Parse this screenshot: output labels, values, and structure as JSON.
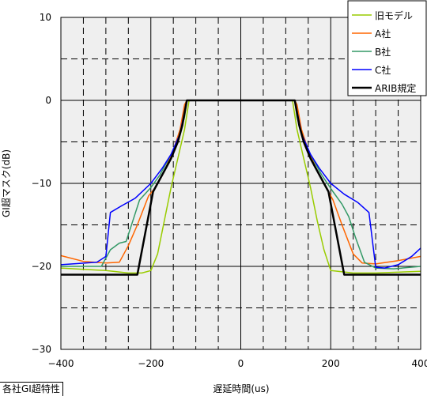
{
  "caption": "各社GI超特性",
  "chart_data": {
    "type": "line",
    "xlabel": "遅延時間(us)",
    "ylabel": "GI超マスク(dB)",
    "xlim": [
      -400,
      400
    ],
    "ylim": [
      -30,
      10
    ],
    "xticks": [
      -400,
      -200,
      0,
      200,
      400
    ],
    "yticks": [
      10,
      0,
      -10,
      -20,
      -30
    ],
    "x_tick_labels": [
      "−400",
      "−200",
      "0",
      "200",
      "400"
    ],
    "y_tick_labels": [
      "10",
      "0",
      "−10",
      "−20",
      "−30"
    ],
    "grid": "solid major every 200 us / 10 dB, dashed minor every 50 us / 5 dB, grey plot background",
    "legend_position": "top-right",
    "series": [
      {
        "name": "旧モデル",
        "color": "#99cc00",
        "width": 1.5,
        "points": [
          [
            -400,
            -20.2
          ],
          [
            -300,
            -20.5
          ],
          [
            -250,
            -20.8
          ],
          [
            -220,
            -20.8
          ],
          [
            -200,
            -20.5
          ],
          [
            -185,
            -18.5
          ],
          [
            -170,
            -14.5
          ],
          [
            -155,
            -10.5
          ],
          [
            -140,
            -7
          ],
          [
            -125,
            -3.5
          ],
          [
            -115,
            0
          ],
          [
            115,
            0
          ],
          [
            125,
            -3.5
          ],
          [
            140,
            -7
          ],
          [
            155,
            -10.5
          ],
          [
            170,
            -14.5
          ],
          [
            185,
            -18
          ],
          [
            200,
            -20.5
          ],
          [
            250,
            -20.8
          ],
          [
            300,
            -20.8
          ],
          [
            400,
            -20.6
          ]
        ]
      },
      {
        "name": "A社",
        "color": "#ff6600",
        "width": 1.5,
        "points": [
          [
            -400,
            -18.7
          ],
          [
            -350,
            -19.4
          ],
          [
            -300,
            -19.6
          ],
          [
            -270,
            -19.5
          ],
          [
            -250,
            -17.5
          ],
          [
            -230,
            -15
          ],
          [
            -205,
            -11.5
          ],
          [
            -190,
            -10.5
          ],
          [
            -170,
            -8.5
          ],
          [
            -150,
            -6
          ],
          [
            -135,
            -3.5
          ],
          [
            -125,
            -0.5
          ],
          [
            -120,
            0
          ],
          [
            120,
            0
          ],
          [
            125,
            -0.5
          ],
          [
            135,
            -3.5
          ],
          [
            150,
            -6
          ],
          [
            170,
            -8.5
          ],
          [
            185,
            -10
          ],
          [
            205,
            -12
          ],
          [
            225,
            -15
          ],
          [
            250,
            -18.5
          ],
          [
            270,
            -19.6
          ],
          [
            300,
            -19.7
          ],
          [
            350,
            -19.3
          ],
          [
            400,
            -18.8
          ]
        ]
      },
      {
        "name": "B社",
        "color": "#339966",
        "width": 1.5,
        "points": [
          [
            -400,
            -20
          ],
          [
            -350,
            -20
          ],
          [
            -310,
            -20
          ],
          [
            -290,
            -18
          ],
          [
            -270,
            -17.2
          ],
          [
            -255,
            -17
          ],
          [
            -240,
            -14.5
          ],
          [
            -225,
            -12
          ],
          [
            -200,
            -10.5
          ],
          [
            -180,
            -9
          ],
          [
            -160,
            -7
          ],
          [
            -140,
            -5
          ],
          [
            -125,
            -2
          ],
          [
            -120,
            0
          ],
          [
            120,
            0
          ],
          [
            125,
            -2
          ],
          [
            140,
            -5
          ],
          [
            160,
            -7
          ],
          [
            180,
            -9
          ],
          [
            205,
            -11
          ],
          [
            225,
            -12.5
          ],
          [
            240,
            -14
          ],
          [
            255,
            -16.5
          ],
          [
            275,
            -19.5
          ],
          [
            300,
            -20.2
          ],
          [
            340,
            -20.3
          ],
          [
            400,
            -20
          ]
        ]
      },
      {
        "name": "C社",
        "color": "#0000ff",
        "width": 1.5,
        "points": [
          [
            -400,
            -19.8
          ],
          [
            -320,
            -19.5
          ],
          [
            -300,
            -18.8
          ],
          [
            -290,
            -13.5
          ],
          [
            -265,
            -12.7
          ],
          [
            -235,
            -11.8
          ],
          [
            -200,
            -10
          ],
          [
            -175,
            -8.2
          ],
          [
            -155,
            -6.5
          ],
          [
            -135,
            -4
          ],
          [
            -122,
            -0.5
          ],
          [
            -120,
            0
          ],
          [
            120,
            0
          ],
          [
            122,
            -0.5
          ],
          [
            135,
            -4
          ],
          [
            155,
            -6.5
          ],
          [
            175,
            -8.2
          ],
          [
            200,
            -10
          ],
          [
            230,
            -11.3
          ],
          [
            260,
            -12.3
          ],
          [
            285,
            -13.5
          ],
          [
            300,
            -20.1
          ],
          [
            320,
            -20.2
          ],
          [
            350,
            -19.8
          ],
          [
            380,
            -18.8
          ],
          [
            400,
            -17.8
          ]
        ]
      },
      {
        "name": "ARIB規定",
        "color": "#000000",
        "width": 2.5,
        "points": [
          [
            -400,
            -21
          ],
          [
            -230,
            -21
          ],
          [
            -195,
            -11
          ],
          [
            -175,
            -9
          ],
          [
            -155,
            -7
          ],
          [
            -140,
            -5
          ],
          [
            -130,
            -3
          ],
          [
            -120,
            0
          ],
          [
            120,
            0
          ],
          [
            130,
            -3
          ],
          [
            140,
            -5
          ],
          [
            155,
            -7
          ],
          [
            175,
            -9
          ],
          [
            195,
            -11
          ],
          [
            230,
            -21
          ],
          [
            400,
            -21
          ]
        ]
      }
    ]
  }
}
